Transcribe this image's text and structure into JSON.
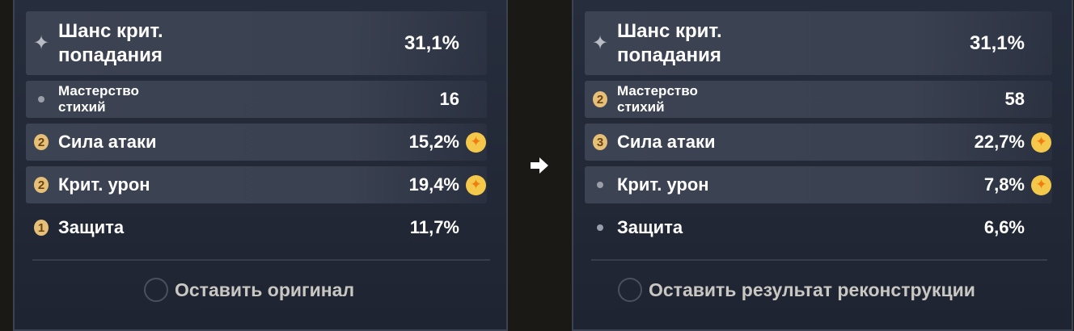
{
  "left": {
    "rows": [
      {
        "icon": "main-stat",
        "label": "Шанс крит. попадания",
        "value": "31,1%"
      },
      {
        "icon": "dot",
        "label": "Мастерство стихий",
        "value": "16"
      },
      {
        "icon": "badge",
        "badge": "2",
        "label": "Сила атаки",
        "value": "15,2%",
        "starred": true
      },
      {
        "icon": "badge",
        "badge": "2",
        "label": "Крит. урон",
        "value": "19,4%",
        "starred": true
      },
      {
        "icon": "badge",
        "badge": "1",
        "label": "Защита",
        "value": "11,7%"
      }
    ],
    "option_label": "Оставить оригинал"
  },
  "right": {
    "rows": [
      {
        "icon": "main-stat",
        "label": "Шанс крит. попадания",
        "value": "31,1%"
      },
      {
        "icon": "badge",
        "badge": "2",
        "label": "Мастерство стихий",
        "value": "58"
      },
      {
        "icon": "badge",
        "badge": "3",
        "label": "Сила атаки",
        "value": "22,7%",
        "starred": true
      },
      {
        "icon": "dot",
        "label": "Крит. урон",
        "value": "7,8%",
        "starred": true
      },
      {
        "icon": "dot",
        "label": "Защита",
        "value": "6,6%"
      }
    ],
    "option_label": "Оставить результат реконструкции"
  },
  "colors": {
    "badge": "#e6c078",
    "star": "#f4c94b",
    "star_glyph": "#f07e12",
    "panel": "#232a38"
  }
}
